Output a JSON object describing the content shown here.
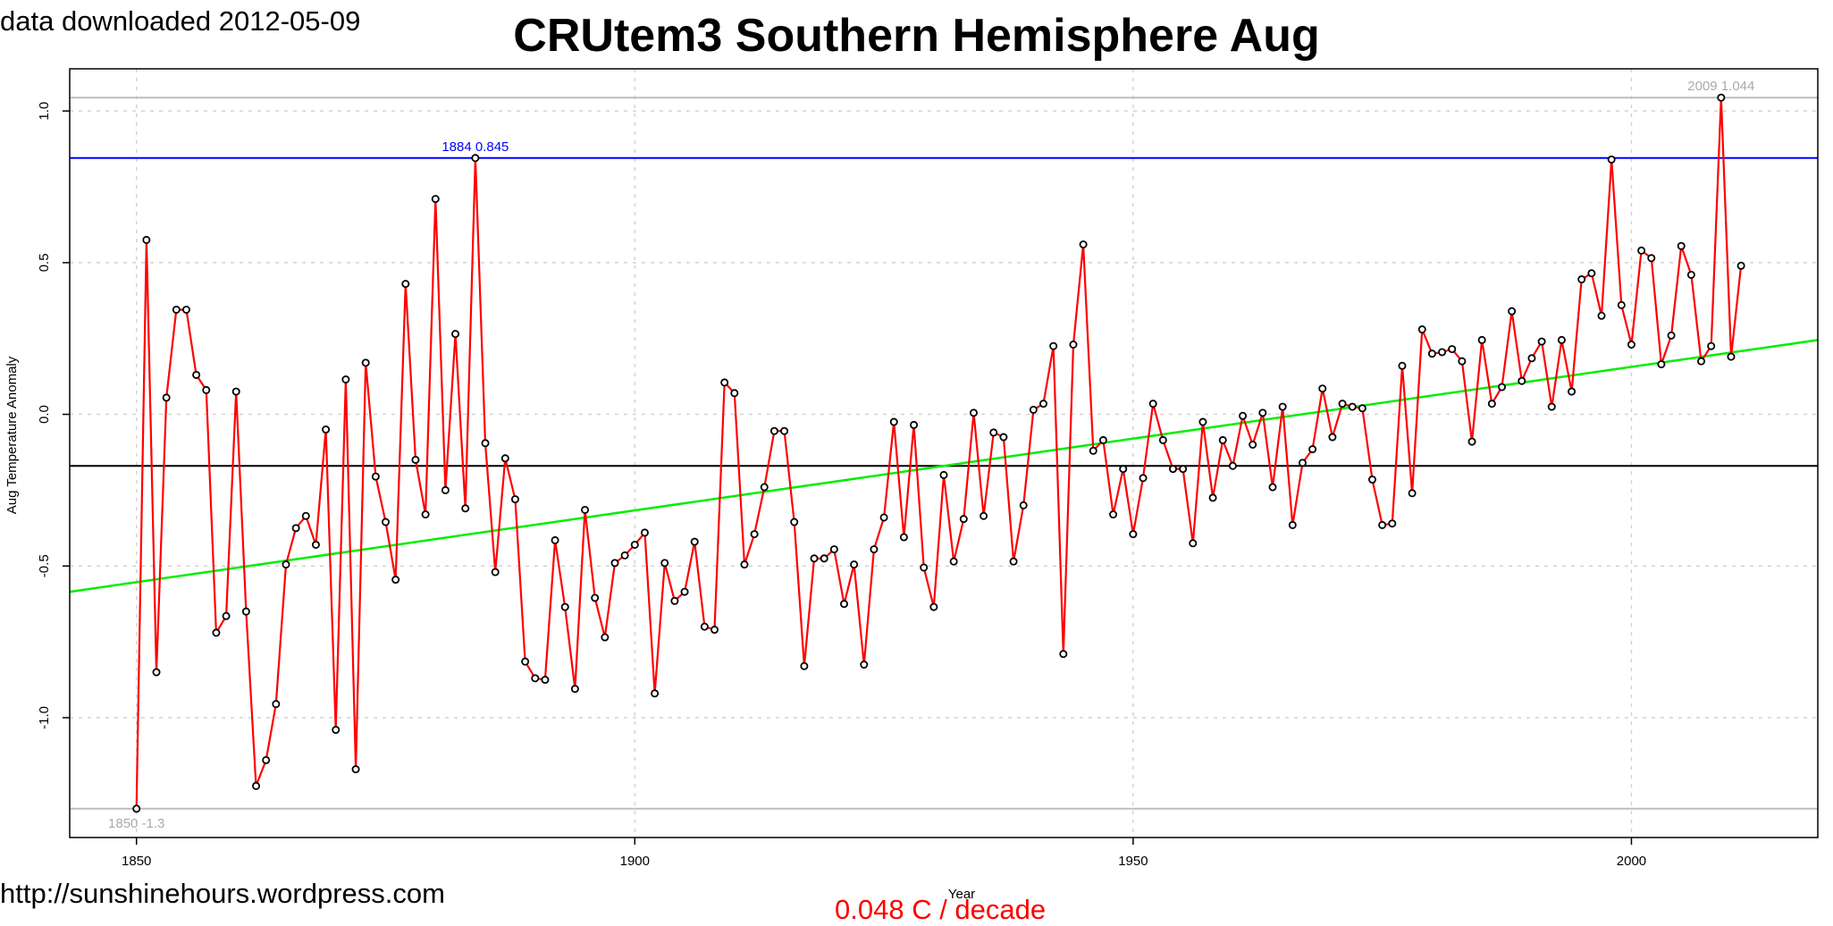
{
  "header": {
    "download_note": "data downloaded 2012-05-09",
    "title": "CRUtem3 Southern Hemisphere Aug"
  },
  "footer": {
    "site_url": "http://sunshinehours.wordpress.com",
    "trend_note": "0.048 C / decade"
  },
  "colors": {
    "series": "#ff0000",
    "trend": "#00ee00",
    "max_line": "#0000ff",
    "mean_line": "#000000",
    "extreme_lines": "#bebebe",
    "grid": "#d3d3d3"
  },
  "chart_data": {
    "type": "line",
    "title": "CRUtem3 Southern Hemisphere Aug",
    "xlabel": "Year",
    "ylabel": "Aug Temperature Anomaly",
    "xlim": [
      1843.3,
      2018.7
    ],
    "ylim": [
      -1.395,
      1.139
    ],
    "x_ticks": [
      1850,
      1900,
      1950,
      2000
    ],
    "y_ticks": [
      -1.0,
      -0.5,
      0.0,
      0.5,
      1.0
    ],
    "y_tick_labels": [
      "-1.0",
      "-0.5",
      "0.0",
      "0.5",
      "1.0"
    ],
    "grid": true,
    "start_year": 1850,
    "series": [
      {
        "values": [
          -1.3,
          0.575,
          -0.85,
          0.055,
          0.345,
          0.345,
          0.13,
          0.08,
          -0.72,
          -0.665,
          0.075,
          -0.65,
          -1.225,
          -1.14,
          -0.955,
          -0.495,
          -0.375,
          -0.335,
          -0.43,
          -0.05,
          -1.04,
          0.115,
          -1.17,
          0.17,
          -0.205,
          -0.355,
          -0.545,
          0.43,
          -0.15,
          -0.33,
          0.71,
          -0.25,
          0.265,
          -0.31,
          0.845,
          -0.095,
          -0.52,
          -0.145,
          -0.28,
          -0.815,
          -0.87,
          -0.875,
          -0.415,
          -0.635,
          -0.905,
          -0.315,
          -0.605,
          -0.735,
          -0.49,
          -0.465,
          -0.43,
          -0.39,
          -0.92,
          -0.49,
          -0.615,
          -0.585,
          -0.42,
          -0.7,
          -0.71,
          0.105,
          0.07,
          -0.495,
          -0.395,
          -0.24,
          -0.055,
          -0.055,
          -0.355,
          -0.83,
          -0.475,
          -0.475,
          -0.445,
          -0.625,
          -0.495,
          -0.825,
          -0.445,
          -0.34,
          -0.025,
          -0.405,
          -0.035,
          -0.505,
          -0.635,
          -0.2,
          -0.485,
          -0.345,
          0.005,
          -0.335,
          -0.06,
          -0.075,
          -0.485,
          -0.3,
          0.015,
          0.035,
          0.225,
          -0.79,
          0.23,
          0.56,
          -0.12,
          -0.085,
          -0.33,
          -0.18,
          -0.395,
          -0.21,
          0.035,
          -0.085,
          -0.18,
          -0.18,
          -0.425,
          -0.025,
          -0.275,
          -0.085,
          -0.17,
          -0.005,
          -0.1,
          0.005,
          -0.24,
          0.025,
          -0.365,
          -0.16,
          -0.115,
          0.085,
          -0.075,
          0.035,
          0.025,
          0.02,
          -0.215,
          -0.365,
          -0.36,
          0.16,
          -0.26,
          0.28,
          0.2,
          0.205,
          0.215,
          0.175,
          -0.09,
          0.245,
          0.035,
          0.09,
          0.34,
          0.11,
          0.185,
          0.24,
          0.025,
          0.245,
          0.075,
          0.445,
          0.465,
          0.325,
          0.84,
          0.36,
          0.23,
          0.54,
          0.515,
          0.165,
          0.26,
          0.555,
          0.46,
          0.175,
          0.225,
          1.044,
          0.19,
          0.49
        ]
      }
    ],
    "trend": {
      "x": [
        1843.3,
        2018.7
      ],
      "y": [
        -0.585,
        0.245
      ]
    },
    "reference_lines": [
      {
        "kind": "max",
        "y": 0.845,
        "label": "1884 0.845",
        "label_x": 1884
      },
      {
        "kind": "mean",
        "y": -0.17
      },
      {
        "kind": "highest",
        "y": 1.044,
        "label": "2009 1.044",
        "label_x": 2009
      },
      {
        "kind": "lowest",
        "y": -1.3,
        "label": "1850 -1.3",
        "label_x": 1850
      }
    ]
  }
}
